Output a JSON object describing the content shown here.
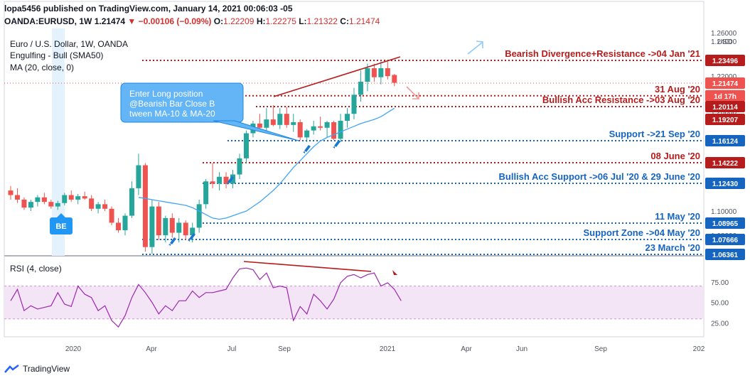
{
  "header": {
    "line1": "lopa5456 published on TradingView.com, January 14, 2021 00:06:03 -05",
    "symbol": "OANDA:EURUSD, 1W",
    "last": "1.21474",
    "change": "−0.00106 (−0.09%)",
    "o_label": "O:",
    "o": "1.22209",
    "h_label": "H:",
    "h": "1.22275",
    "l_label": "L:",
    "l": "1.21322",
    "c_label": "C:",
    "c": "1.21474"
  },
  "footer": {
    "brand": "TradingView"
  },
  "colors": {
    "bull": "#26a69a",
    "bear": "#ef5350",
    "ma": "#42a5f5",
    "resistance": "#b71c1c",
    "support": "#1565c0",
    "rsi": "#9c27b0"
  },
  "chart_data": [
    {
      "type": "candlestick",
      "title": "Euro / U.S. Dollar, 1W, OANDA",
      "indicators": [
        "Engulfing - Bull (SMA50)",
        "MA (20, close, 0)"
      ],
      "x_ticks": [
        "2020",
        "Apr",
        "Jul",
        "Sep",
        "2021",
        "Apr",
        "Jun",
        "Sep",
        "202"
      ],
      "y_ticks": [
        "1.26000",
        "1.24000",
        "1.22000",
        "1.20000",
        "1.10000",
        "1.08000"
      ],
      "ylim": [
        1.06,
        1.26
      ],
      "candles": [
        [
          1.118,
          1.122,
          1.11,
          1.114
        ],
        [
          1.114,
          1.12,
          1.107,
          1.11
        ],
        [
          1.11,
          1.112,
          1.101,
          1.103
        ],
        [
          1.103,
          1.11,
          1.1,
          1.108
        ],
        [
          1.108,
          1.114,
          1.104,
          1.112
        ],
        [
          1.112,
          1.116,
          1.106,
          1.108
        ],
        [
          1.108,
          1.11,
          1.102,
          1.104
        ],
        [
          1.104,
          1.109,
          1.101,
          1.107
        ],
        [
          1.107,
          1.116,
          1.105,
          1.114
        ],
        [
          1.114,
          1.118,
          1.108,
          1.11
        ],
        [
          1.11,
          1.115,
          1.106,
          1.113
        ],
        [
          1.113,
          1.117,
          1.11,
          1.111
        ],
        [
          1.111,
          1.114,
          1.1,
          1.102
        ],
        [
          1.102,
          1.108,
          1.098,
          1.106
        ],
        [
          1.106,
          1.11,
          1.1,
          1.102
        ],
        [
          1.102,
          1.104,
          1.088,
          1.09
        ],
        [
          1.09,
          1.094,
          1.082,
          1.084
        ],
        [
          1.084,
          1.098,
          1.08,
          1.096
        ],
        [
          1.096,
          1.126,
          1.094,
          1.12
        ],
        [
          1.12,
          1.15,
          1.114,
          1.14
        ],
        [
          1.14,
          1.142,
          1.066,
          1.07
        ],
        [
          1.07,
          1.11,
          1.064,
          1.104
        ],
        [
          1.104,
          1.108,
          1.076,
          1.08
        ],
        [
          1.08,
          1.096,
          1.074,
          1.094
        ],
        [
          1.094,
          1.098,
          1.078,
          1.082
        ],
        [
          1.082,
          1.094,
          1.074,
          1.09
        ],
        [
          1.09,
          1.092,
          1.076,
          1.08
        ],
        [
          1.08,
          1.09,
          1.074,
          1.086
        ],
        [
          1.086,
          1.11,
          1.082,
          1.106
        ],
        [
          1.106,
          1.128,
          1.102,
          1.126
        ],
        [
          1.126,
          1.142,
          1.12,
          1.124
        ],
        [
          1.124,
          1.134,
          1.118,
          1.13
        ],
        [
          1.13,
          1.134,
          1.12,
          1.124
        ],
        [
          1.124,
          1.136,
          1.12,
          1.132
        ],
        [
          1.132,
          1.15,
          1.128,
          1.146
        ],
        [
          1.146,
          1.176,
          1.142,
          1.172
        ],
        [
          1.172,
          1.19,
          1.166,
          1.186
        ],
        [
          1.186,
          1.196,
          1.176,
          1.18
        ],
        [
          1.18,
          1.2,
          1.176,
          1.192
        ],
        [
          1.192,
          1.202,
          1.182,
          1.184
        ],
        [
          1.184,
          1.2,
          1.178,
          1.196
        ],
        [
          1.196,
          1.201,
          1.18,
          1.184
        ],
        [
          1.184,
          1.196,
          1.174,
          1.188
        ],
        [
          1.188,
          1.192,
          1.162,
          1.166
        ],
        [
          1.166,
          1.178,
          1.16,
          1.176
        ],
        [
          1.176,
          1.19,
          1.17,
          1.182
        ],
        [
          1.182,
          1.194,
          1.176,
          1.18
        ],
        [
          1.18,
          1.19,
          1.166,
          1.188
        ],
        [
          1.188,
          1.19,
          1.162,
          1.164
        ],
        [
          1.164,
          1.196,
          1.16,
          1.19
        ],
        [
          1.19,
          1.2,
          1.18,
          1.196
        ],
        [
          1.196,
          1.212,
          1.192,
          1.208
        ],
        [
          1.208,
          1.226,
          1.204,
          1.216
        ],
        [
          1.216,
          1.232,
          1.21,
          1.228
        ],
        [
          1.228,
          1.232,
          1.216,
          1.22
        ],
        [
          1.22,
          1.234,
          1.214,
          1.228
        ],
        [
          1.228,
          1.234,
          1.218,
          1.221
        ],
        [
          1.222,
          1.223,
          1.213,
          1.215
        ]
      ],
      "ma20": [
        1.112,
        1.111,
        1.11,
        1.109,
        1.108,
        1.107,
        1.106,
        1.105,
        1.103,
        1.1,
        1.097,
        1.094,
        1.093,
        1.094,
        1.096,
        1.098,
        1.1,
        1.104,
        1.108,
        1.113,
        1.118,
        1.124,
        1.131,
        1.138,
        1.144,
        1.15,
        1.156,
        1.161,
        1.166,
        1.17,
        1.174,
        1.178,
        1.182,
        1.186,
        1.189,
        1.192,
        1.194,
        1.197,
        1.2
      ],
      "levels": [
        {
          "label": "Bearish Divergence+Resistance ->04 Jan '21",
          "value": 1.23496,
          "tag": "1.23496",
          "kind": "resistance"
        },
        {
          "label": "31 Aug '20",
          "value": 1.2074,
          "tag": "1d 17h",
          "kind": "resistance"
        },
        {
          "label": "Bullish Acc Resistance ->03 Aug '20",
          "value": 1.20114,
          "tag": "1.20114",
          "kind": "resistance"
        },
        {
          "label": "Support ->21 Sep '20",
          "value": 1.16124,
          "tag": "1.16124",
          "kind": "support"
        },
        {
          "label": "08 June '20",
          "value": 1.14222,
          "tag": "1.14222",
          "kind": "resistance"
        },
        {
          "label": "Bullish Acc Support ->06 Jul '20 & 29 June '20",
          "value": 1.1243,
          "tag": "1.12430",
          "kind": "support"
        },
        {
          "label": "11 May '20",
          "value": 1.08965,
          "tag": "1.08965",
          "kind": "support"
        },
        {
          "label": "Support Zone ->04 May '20",
          "value": 1.07666,
          "tag": "1.07666",
          "kind": "support"
        },
        {
          "label": "23 March '20",
          "value": 1.06361,
          "tag": "1.06361",
          "kind": "support"
        }
      ],
      "price_tags": [
        {
          "value": 1.21474,
          "text": "1.21474",
          "kind": "price"
        },
        {
          "value": 1.19207,
          "text": "1.19207",
          "kind": "resistance"
        }
      ],
      "currency": "USD",
      "callout": "Enter Long position @Bearish Bar Close Between MA-10 & MA-20",
      "marker": "BE"
    },
    {
      "type": "line",
      "title": "RSI (4, close)",
      "y_ticks": [
        "75.00",
        "50.00",
        "25.00"
      ],
      "ylim": [
        15,
        100
      ],
      "band": [
        30,
        70
      ],
      "values": [
        52,
        66,
        40,
        46,
        42,
        44,
        46,
        62,
        48,
        45,
        70,
        60,
        56,
        40,
        46,
        28,
        20,
        34,
        56,
        72,
        62,
        50,
        36,
        46,
        40,
        52,
        52,
        64,
        56,
        62,
        62,
        64,
        66,
        80,
        91,
        92,
        90,
        78,
        86,
        68,
        70,
        68,
        28,
        45,
        36,
        60,
        52,
        42,
        54,
        74,
        82,
        84,
        80,
        84,
        86,
        70,
        74,
        66,
        52
      ]
    }
  ]
}
